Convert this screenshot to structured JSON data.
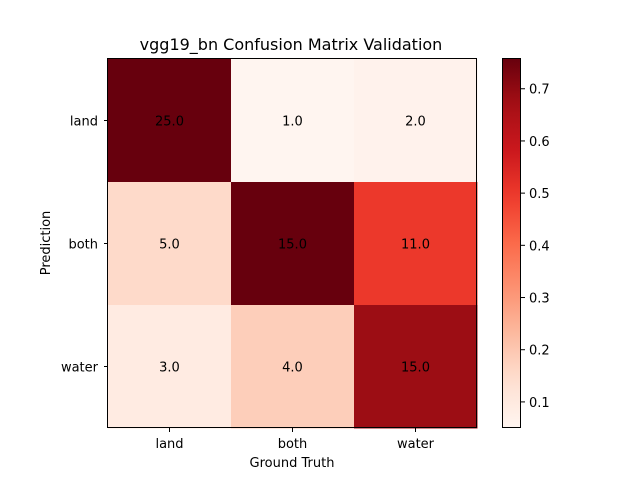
{
  "chart_data": {
    "type": "heatmap",
    "title": "vgg19_bn Confusion Matrix Validation",
    "xlabel": "Ground Truth",
    "ylabel": "Prediction",
    "x_categories": [
      "land",
      "both",
      "water"
    ],
    "y_categories": [
      "land",
      "both",
      "water"
    ],
    "values": [
      [
        25.0,
        1.0,
        2.0
      ],
      [
        5.0,
        15.0,
        11.0
      ],
      [
        3.0,
        4.0,
        15.0
      ]
    ],
    "value_labels": [
      [
        "25.0",
        "1.0",
        "2.0"
      ],
      [
        "5.0",
        "15.0",
        "11.0"
      ],
      [
        "3.0",
        "4.0",
        "15.0"
      ]
    ],
    "color_values": [
      [
        0.757,
        0.0303,
        0.0606
      ],
      [
        0.152,
        0.757,
        0.5
      ],
      [
        0.0909,
        0.1818,
        0.6818
      ]
    ],
    "colormap": "Reds",
    "colorbar": {
      "range": [
        0.05,
        0.757
      ],
      "ticks": [
        0.1,
        0.2,
        0.3,
        0.4,
        0.5,
        0.6,
        0.7
      ],
      "tick_labels": [
        "0.1",
        "0.2",
        "0.3",
        "0.4",
        "0.5",
        "0.6",
        "0.7"
      ]
    },
    "grid": false
  }
}
